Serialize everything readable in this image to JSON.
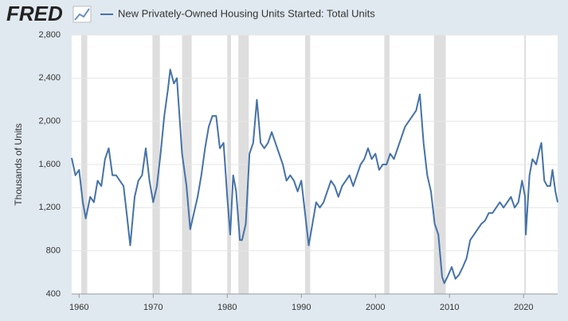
{
  "chart_data": {
    "type": "line",
    "logo": "FRED",
    "ylabel": "Thousands of Units",
    "xlim": [
      1959,
      2024.6
    ],
    "xticks": [
      1960,
      1970,
      1980,
      1990,
      2000,
      2010,
      2020
    ],
    "ylim": [
      400,
      2800
    ],
    "yticks": [
      400,
      800,
      {
        "value": 1200,
        "label": "1,200"
      },
      {
        "value": 1600,
        "label": "1,600"
      },
      {
        "value": 2000,
        "label": "2,000"
      },
      {
        "value": 2400,
        "label": "2,400"
      },
      {
        "value": 2800,
        "label": "2,800"
      }
    ],
    "grid": true,
    "recessions": [
      [
        1960.3,
        1961.1
      ],
      [
        1969.9,
        1970.9
      ],
      [
        1973.9,
        1975.2
      ],
      [
        1980.0,
        1980.5
      ],
      [
        1981.5,
        1982.9
      ],
      [
        1990.5,
        1991.2
      ],
      [
        2001.2,
        2001.9
      ],
      [
        2007.9,
        2009.5
      ],
      [
        2020.1,
        2020.3
      ]
    ],
    "recession_color": "#dedede",
    "x": [
      1959.0,
      1959.5,
      1960.0,
      1960.5,
      1960.9,
      1961.5,
      1962.0,
      1962.5,
      1963.0,
      1963.5,
      1964.0,
      1964.5,
      1965.0,
      1965.5,
      1966.0,
      1966.5,
      1966.9,
      1967.5,
      1968.0,
      1968.5,
      1969.0,
      1969.5,
      1970.0,
      1970.5,
      1971.0,
      1971.5,
      1972.0,
      1972.3,
      1972.8,
      1973.2,
      1973.5,
      1973.9,
      1974.5,
      1975.0,
      1975.5,
      1976.0,
      1976.5,
      1977.0,
      1977.5,
      1978.0,
      1978.5,
      1979.0,
      1979.5,
      1980.0,
      1980.4,
      1980.8,
      1981.2,
      1981.7,
      1982.0,
      1982.5,
      1983.0,
      1983.5,
      1984.0,
      1984.5,
      1985.0,
      1985.5,
      1986.0,
      1986.5,
      1987.0,
      1987.5,
      1988.0,
      1988.5,
      1989.0,
      1989.5,
      1990.0,
      1990.5,
      1991.0,
      1991.5,
      1992.0,
      1992.5,
      1993.0,
      1993.5,
      1994.0,
      1994.5,
      1995.0,
      1995.5,
      1996.0,
      1996.5,
      1997.0,
      1997.5,
      1998.0,
      1998.5,
      1999.0,
      1999.5,
      2000.0,
      2000.5,
      2001.0,
      2001.5,
      2002.0,
      2002.5,
      2003.0,
      2003.5,
      2004.0,
      2004.5,
      2005.0,
      2005.5,
      2006.0,
      2006.5,
      2007.0,
      2007.5,
      2008.0,
      2008.5,
      2009.0,
      2009.3,
      2009.8,
      2010.3,
      2010.8,
      2011.3,
      2011.8,
      2012.3,
      2012.8,
      2013.3,
      2013.8,
      2014.3,
      2014.8,
      2015.3,
      2015.8,
      2016.3,
      2016.8,
      2017.3,
      2017.8,
      2018.3,
      2018.8,
      2019.3,
      2019.8,
      2020.2,
      2020.3,
      2020.8,
      2021.2,
      2021.7,
      2022.2,
      2022.4,
      2022.8,
      2023.2,
      2023.6,
      2023.9,
      2024.3,
      2024.6
    ],
    "series": [
      {
        "name": "New Privately-Owned Housing Units Started: Total Units",
        "color": "#4572a7",
        "values": [
          1660,
          1500,
          1550,
          1250,
          1100,
          1300,
          1250,
          1450,
          1400,
          1650,
          1750,
          1500,
          1500,
          1450,
          1400,
          1100,
          850,
          1300,
          1450,
          1500,
          1750,
          1450,
          1250,
          1400,
          1700,
          2050,
          2300,
          2480,
          2350,
          2400,
          2100,
          1700,
          1400,
          1000,
          1150,
          1300,
          1500,
          1750,
          1950,
          2050,
          2050,
          1750,
          1800,
          1300,
          950,
          1500,
          1350,
          900,
          900,
          1050,
          1700,
          1800,
          2200,
          1800,
          1750,
          1800,
          1900,
          1800,
          1700,
          1600,
          1450,
          1500,
          1450,
          1350,
          1450,
          1150,
          850,
          1050,
          1250,
          1200,
          1250,
          1350,
          1450,
          1400,
          1300,
          1400,
          1450,
          1500,
          1400,
          1500,
          1600,
          1650,
          1750,
          1650,
          1700,
          1550,
          1600,
          1600,
          1700,
          1650,
          1750,
          1850,
          1950,
          2000,
          2050,
          2100,
          2250,
          1800,
          1500,
          1350,
          1050,
          950,
          560,
          500,
          570,
          650,
          540,
          580,
          650,
          730,
          900,
          950,
          1000,
          1050,
          1080,
          1150,
          1150,
          1200,
          1250,
          1200,
          1250,
          1300,
          1200,
          1250,
          1450,
          1300,
          950,
          1500,
          1650,
          1600,
          1750,
          1800,
          1450,
          1400,
          1400,
          1550,
          1350,
          1250
        ]
      }
    ]
  }
}
